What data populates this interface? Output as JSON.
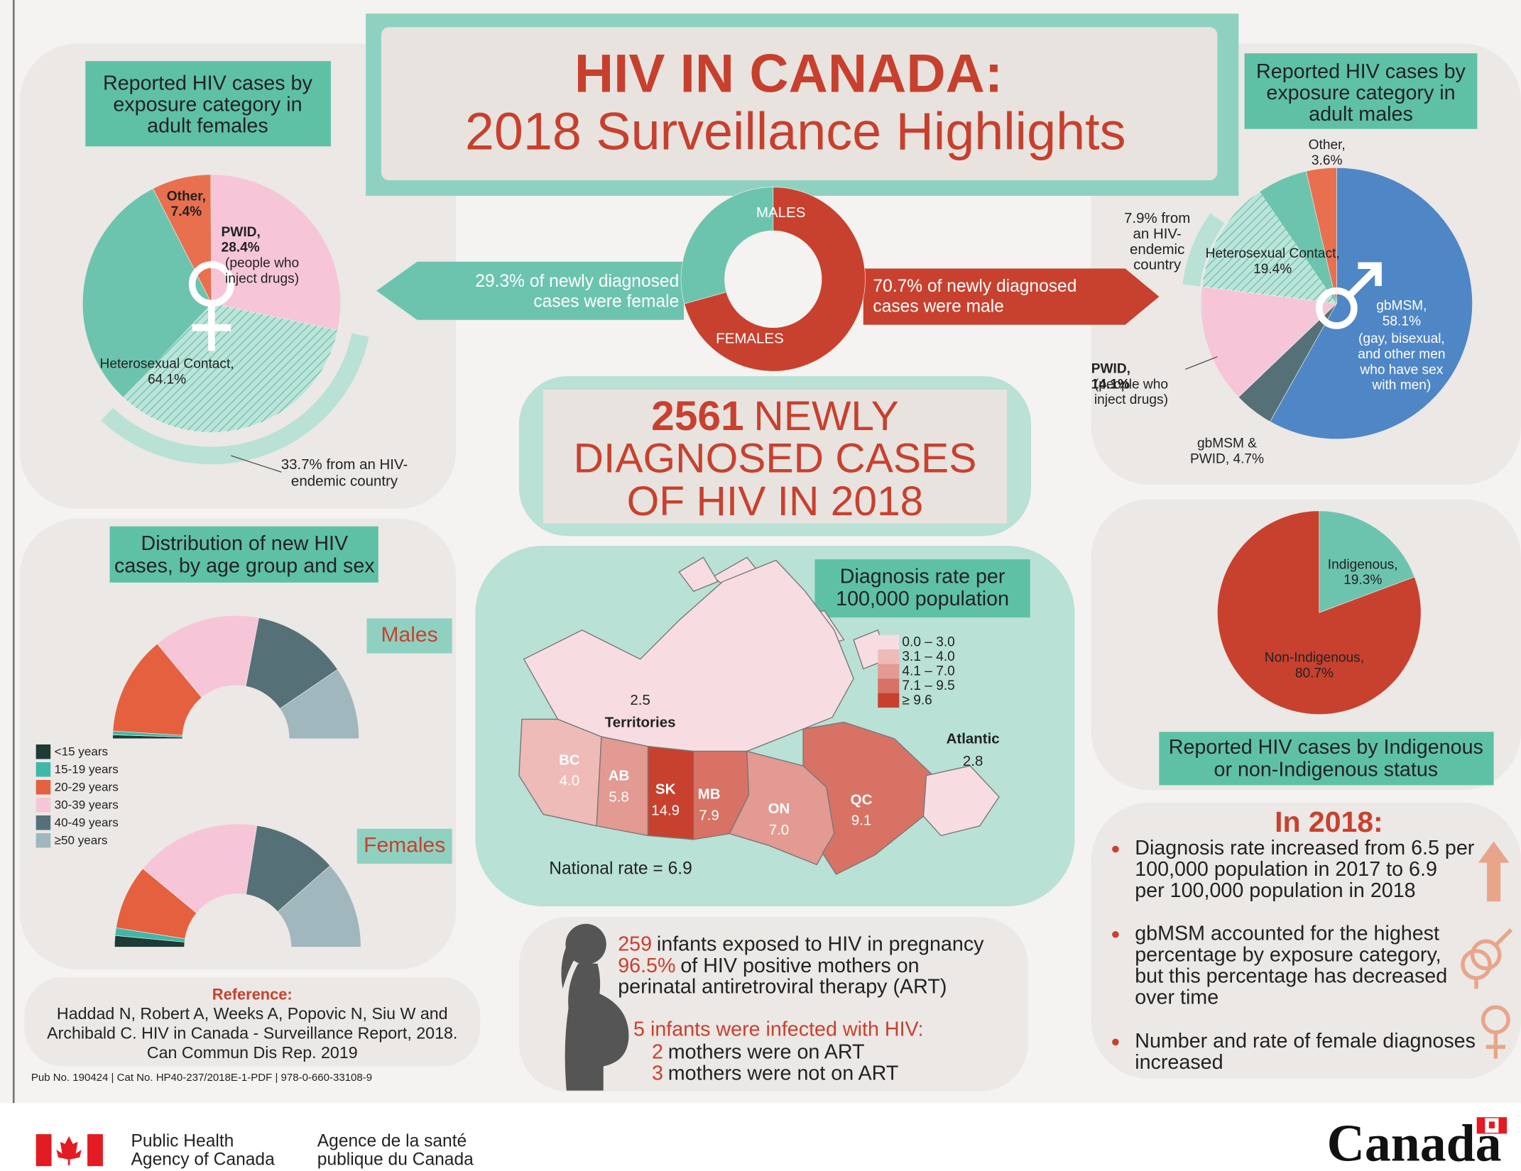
{
  "header": {
    "title": "HIV IN CANADA:",
    "subtitle": "2018 Surveillance Highlights"
  },
  "chart_data": [
    {
      "type": "pie",
      "title": [
        "Reported HIV cases by",
        "exposure category in",
        "adult females"
      ],
      "categories": [
        "Other,",
        "PWID,",
        "Heterosexual Contact,"
      ],
      "values": [
        7.4,
        28.4,
        64.1
      ],
      "value_labels": [
        "7.4%",
        "28.4%",
        "64.1%"
      ],
      "colors": [
        "#e8704f",
        "#f6c6d8",
        "#6cc4ae"
      ],
      "pwid_note": [
        "(people who",
        "inject drugs)"
      ],
      "annotation": {
        "value": 33.7,
        "label": [
          "33.7% from an HIV-",
          "endemic country"
        ]
      }
    },
    {
      "type": "pie",
      "title": [
        "Reported HIV cases by",
        "exposure category in",
        "adult males"
      ],
      "categories": [
        "gbMSM,",
        "gbMSM &",
        "PWID,",
        "Heterosexual Contact,",
        "Other,"
      ],
      "values": [
        58.1,
        4.7,
        14.1,
        19.4,
        3.6
      ],
      "value_labels": [
        "58.1%",
        "PWID, 4.7%",
        "14.1%",
        "19.4%",
        "3.6%"
      ],
      "colors": [
        "#4f86c6",
        "#557177",
        "#f6c6d8",
        "#6cc4ae",
        "#e8704f"
      ],
      "gbmsm_note": [
        "(gay, bisexual,",
        "and other men",
        "who have sex",
        "with men)"
      ],
      "pwid_note": [
        "(people who",
        "inject drugs)"
      ],
      "annotation": {
        "value": 7.9,
        "label": [
          "7.9% from",
          "an HIV-",
          "endemic",
          "country"
        ]
      }
    },
    {
      "type": "donut",
      "categories": [
        "MALES",
        "FEMALES"
      ],
      "values": [
        70.7,
        29.3
      ],
      "value_labels": [
        [
          "70.7% of newly diagnosed",
          "cases were male"
        ],
        [
          "29.3% of newly diagnosed",
          "cases were female"
        ]
      ],
      "colors": [
        "#c8412e",
        "#6cc4ae"
      ]
    },
    {
      "type": "half-donut",
      "title": [
        "Distribution of new HIV",
        "cases, by age group and sex"
      ],
      "categories": [
        "<15 years",
        "15-19 years",
        "20-29 years",
        "30-39 years",
        "40-49 years",
        "≥50 years"
      ],
      "colors": [
        "#1e3b36",
        "#3fb8a8",
        "#e4603f",
        "#f6c6d8",
        "#557177",
        "#9fb7bd"
      ],
      "series": [
        {
          "name": "Males",
          "values": [
            1,
            1,
            26,
            28,
            25,
            19
          ]
        },
        {
          "name": "Females",
          "values": [
            3,
            2,
            17,
            33,
            22,
            23
          ]
        }
      ]
    },
    {
      "type": "choropleth",
      "title": [
        "Diagnosis rate per",
        "100,000 population"
      ],
      "categories": [
        "Territories",
        "BC",
        "AB",
        "SK",
        "MB",
        "ON",
        "QC",
        "Atlantic"
      ],
      "values": [
        2.5,
        4.0,
        5.8,
        14.9,
        7.9,
        7.0,
        9.1,
        2.8
      ],
      "value_labels": [
        "2.5",
        "4.0",
        "5.8",
        "14.9",
        "7.9",
        "7.0",
        "9.1",
        "2.8"
      ],
      "bins": [
        {
          "min": 0.0,
          "label": "0.0 – 3.0",
          "color": "#f7dde1"
        },
        {
          "min": 3.1,
          "label": "3.1 – 4.0",
          "color": "#eebbb9"
        },
        {
          "min": 4.1,
          "label": "4.1 – 7.0",
          "color": "#e39a93"
        },
        {
          "min": 7.1,
          "label": "7.1 – 9.5",
          "color": "#d87265"
        },
        {
          "min": 9.6,
          "label": "≥ 9.6",
          "color": "#c8412e"
        }
      ],
      "note": "National rate = 6.9"
    },
    {
      "type": "pie",
      "title": [
        "Reported HIV cases by Indigenous",
        "or non-Indigenous status"
      ],
      "categories": [
        "Indigenous,",
        "Non-Indigenous,"
      ],
      "values": [
        19.3,
        80.7
      ],
      "value_labels": [
        "19.3%",
        "80.7%"
      ],
      "colors": [
        "#6cc4ae",
        "#c8412e"
      ]
    }
  ],
  "headline": {
    "number": 2561,
    "lines": [
      "NEWLY",
      "DIAGNOSED CASES",
      "OF HIV IN 2018"
    ]
  },
  "pregnancy": {
    "exposed": {
      "number": 259,
      "text": "infants exposed to HIV in pregnancy"
    },
    "art": {
      "number": "96.5%",
      "lines": [
        "of HIV positive mothers on",
        "perinatal antiretroviral therapy (ART)"
      ]
    },
    "infected": "5 infants were infected with HIV:",
    "on_art": {
      "number": 2,
      "text": "mothers were on ART"
    },
    "not_on_art": {
      "number": 3,
      "text": "mothers were not on ART"
    }
  },
  "highlights": {
    "title": "In 2018:",
    "bullets": [
      [
        "Diagnosis rate increased from 6.5 per",
        "100,000 population in 2017 to 6.9",
        "per 100,000 population in 2018"
      ],
      [
        "gbMSM accounted for the highest",
        "percentage by exposure category,",
        "but this percentage has decreased",
        "over time"
      ],
      [
        "Number and rate of female diagnoses",
        "increased"
      ]
    ]
  },
  "reference": {
    "title": "Reference:",
    "lines": [
      "Haddad N, Robert A, Weeks A, Popovic N, Siu W and",
      "Archibald C. HIV in Canada - Surveillance Report, 2018.",
      "Can Commun Dis Rep. 2019"
    ]
  },
  "publication": "Pub No. 190424 | Cat No. HP40-237/2018E-1-PDF | 978-0-660-33108-9",
  "footer": {
    "english": [
      "Public Health",
      "Agency of Canada"
    ],
    "french": [
      "Agence de la santé",
      "publique du Canada"
    ],
    "wordmark": "Canada"
  }
}
